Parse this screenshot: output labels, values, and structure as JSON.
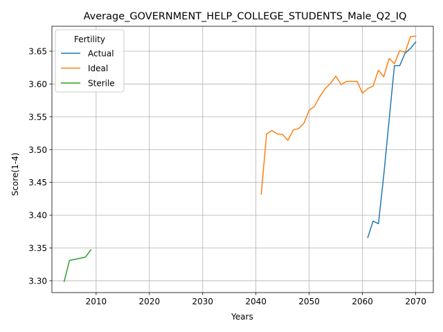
{
  "chart_data": {
    "type": "line",
    "title": "Average_GOVERNMENT_HELP_COLLEGE_STUDENTS_Male_Q2_IQ",
    "xlabel": "Years",
    "ylabel": "Score(1-4)",
    "xlim": [
      2001.7,
      2073.3
    ],
    "ylim": [
      3.282,
      3.688
    ],
    "xticks": [
      2010,
      2020,
      2030,
      2040,
      2050,
      2060,
      2070
    ],
    "yticks": [
      3.3,
      3.35,
      3.4,
      3.45,
      3.5,
      3.55,
      3.6,
      3.65
    ],
    "ytick_labels": [
      "3.30",
      "3.35",
      "3.40",
      "3.45",
      "3.50",
      "3.55",
      "3.60",
      "3.65"
    ],
    "grid": true,
    "legend": {
      "title": "Fertility",
      "placement": "upper-left"
    },
    "series": [
      {
        "name": "Actual",
        "color": "#1f77b4",
        "x": [
          2061,
          2062,
          2063,
          2064,
          2065,
          2066,
          2067,
          2068,
          2069,
          2070
        ],
        "y": [
          3.366,
          3.391,
          3.387,
          3.461,
          3.545,
          3.628,
          3.628,
          3.647,
          3.654,
          3.664
        ]
      },
      {
        "name": "Ideal",
        "color": "#ff7f0e",
        "x": [
          2041,
          2042,
          2043,
          2044,
          2045,
          2046,
          2047,
          2048,
          2049,
          2050,
          2051,
          2052,
          2053,
          2054,
          2055,
          2056,
          2057,
          2058,
          2059,
          2060,
          2061,
          2062,
          2063,
          2064,
          2065,
          2066,
          2067,
          2068,
          2069,
          2070
        ],
        "y": [
          3.432,
          3.524,
          3.529,
          3.524,
          3.523,
          3.514,
          3.53,
          3.532,
          3.54,
          3.56,
          3.566,
          3.581,
          3.593,
          3.601,
          3.612,
          3.599,
          3.604,
          3.604,
          3.604,
          3.586,
          3.593,
          3.597,
          3.621,
          3.611,
          3.639,
          3.631,
          3.651,
          3.648,
          3.672,
          3.673
        ]
      },
      {
        "name": "Sterile",
        "color": "#2ca02c",
        "x": [
          2004,
          2005,
          2008,
          2009
        ],
        "y": [
          3.299,
          3.331,
          3.336,
          3.347
        ]
      }
    ]
  }
}
